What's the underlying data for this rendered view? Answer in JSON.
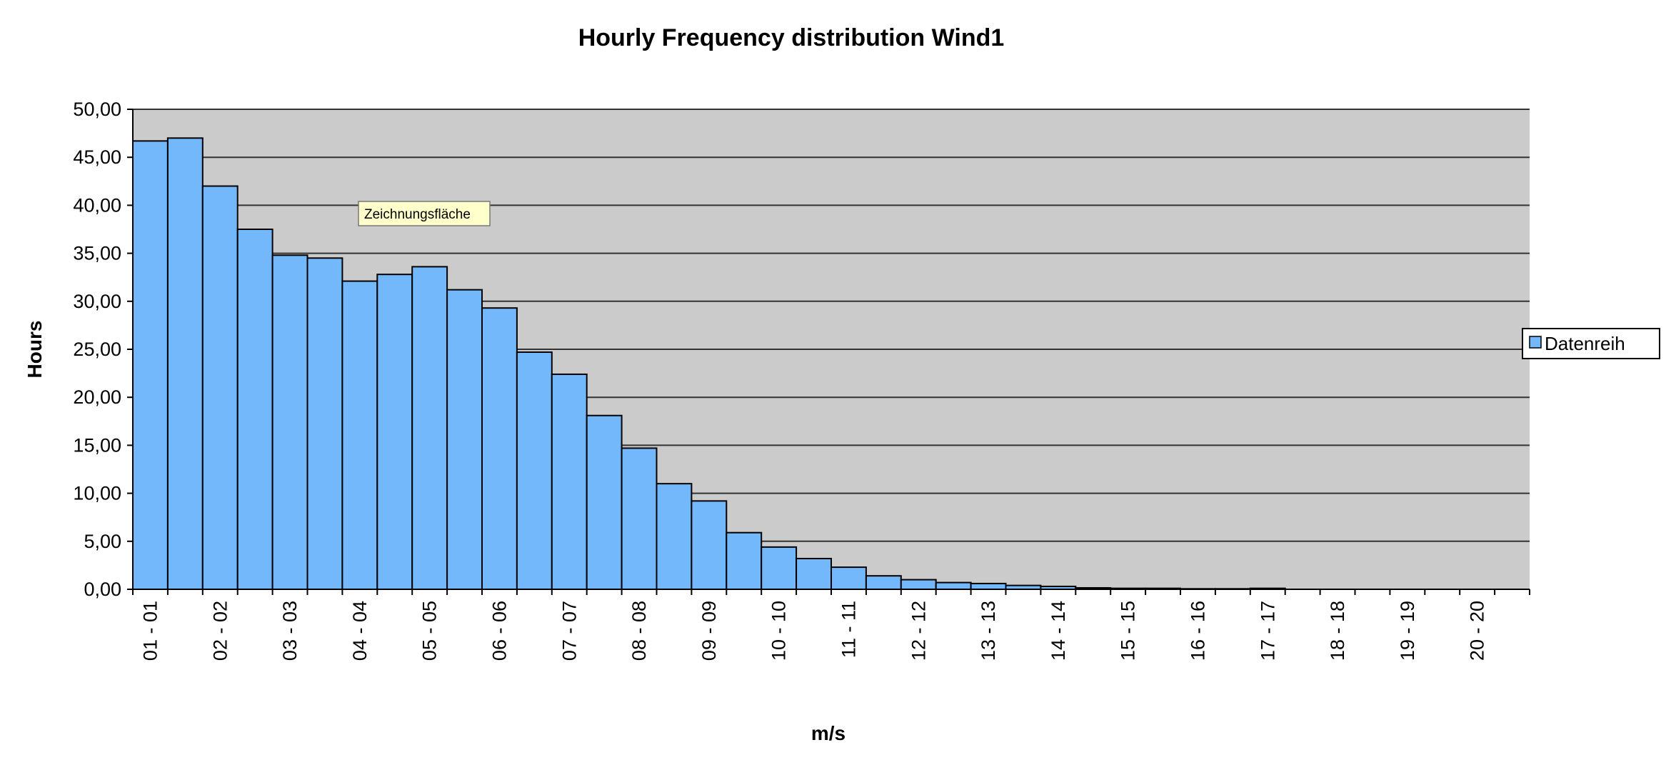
{
  "chart_data": {
    "type": "bar",
    "title": "Hourly Frequency distribution Wind1",
    "xlabel": "m/s",
    "ylabel": "Hours",
    "ylim": [
      0,
      50
    ],
    "yticks": [
      "0,00",
      "5,00",
      "10,00",
      "15,00",
      "20,00",
      "25,00",
      "30,00",
      "35,00",
      "40,00",
      "45,00",
      "50,00"
    ],
    "categories": [
      "01 - 01",
      "",
      "02 - 02",
      "",
      "03 - 03",
      "",
      "04 - 04",
      "",
      "05 - 05",
      "",
      "06 - 06",
      "",
      "07 - 07",
      "",
      "08 - 08",
      "",
      "09 - 09",
      "",
      "10 - 10",
      "",
      "11 - 11",
      "",
      "12 - 12",
      "",
      "13 - 13",
      "",
      "14 - 14",
      "",
      "15 - 15",
      "",
      "16 - 16",
      "",
      "17 - 17",
      "",
      "18 - 18",
      "",
      "19 - 19",
      "",
      "20 - 20",
      ""
    ],
    "series": [
      {
        "name": "Datenreih",
        "values": [
          46.7,
          47.0,
          42.0,
          37.5,
          34.8,
          34.5,
          32.1,
          32.8,
          33.6,
          31.2,
          29.3,
          24.7,
          22.4,
          18.1,
          14.7,
          11.0,
          9.2,
          5.9,
          4.4,
          3.2,
          2.3,
          1.4,
          1.0,
          0.7,
          0.6,
          0.4,
          0.3,
          0.15,
          0.1,
          0.1,
          0.05,
          0.05,
          0.1,
          0.0,
          0.0,
          0.0,
          0.0,
          0.0,
          0.0,
          0.0
        ]
      }
    ],
    "grid": true,
    "legend_position": "right",
    "colors": {
      "bar_fill": "#74b8fc",
      "plot_background": "#cbcbcb",
      "gridline": "#333333",
      "tooltip_background": "#ffffcc"
    },
    "tooltip": "Zeichnungsfläche"
  }
}
